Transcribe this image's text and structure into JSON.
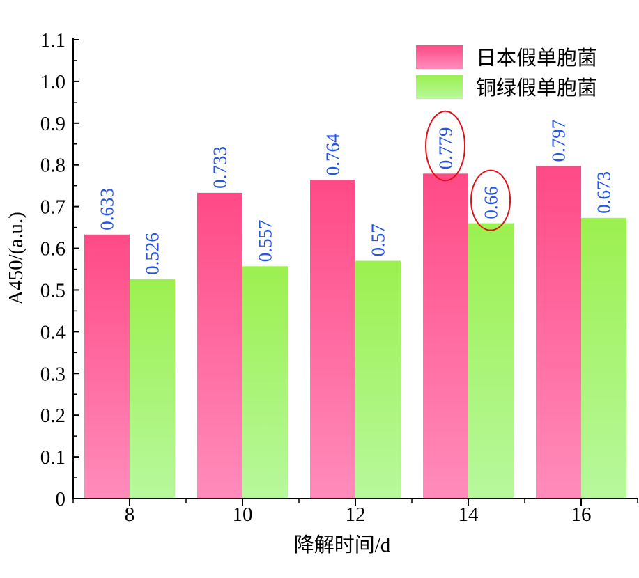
{
  "chart_data": {
    "type": "bar",
    "xlabel": "降解时间/d",
    "ylabel": "A450/(a.u.)",
    "categories": [
      "8",
      "10",
      "12",
      "14",
      "16"
    ],
    "series": [
      {
        "name": "日本假单胞菌",
        "values": [
          0.633,
          0.733,
          0.764,
          0.779,
          0.797
        ],
        "value_labels": [
          "0.633",
          "0.733",
          "0.764",
          "0.779",
          "0.797"
        ],
        "color_top": "#ff4a86",
        "color_bottom": "#ff8cbb"
      },
      {
        "name": "铜绿假单胞菌",
        "values": [
          0.526,
          0.557,
          0.57,
          0.66,
          0.673
        ],
        "value_labels": [
          "0.526",
          "0.557",
          "0.57",
          "0.66",
          "0.673"
        ],
        "color_top": "#9cf04f",
        "color_bottom": "#b7f89d"
      }
    ],
    "ylim": [
      0,
      1.1
    ],
    "yticks": [
      "0",
      "0.1",
      "0.2",
      "0.3",
      "0.4",
      "0.5",
      "0.6",
      "0.7",
      "0.8",
      "0.9",
      "1.0",
      "1.1"
    ],
    "label_color": "#2255e0",
    "highlight_color": "#e0101a",
    "highlighted_labels": [
      {
        "series": 0,
        "category": "14"
      },
      {
        "series": 1,
        "category": "14"
      }
    ],
    "legend_position": "top-right",
    "grid": false
  }
}
